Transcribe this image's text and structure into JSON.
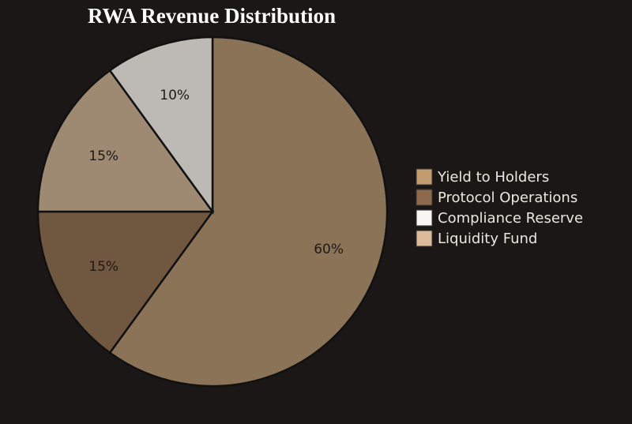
{
  "chart_data": {
    "type": "pie",
    "title": "RWA Revenue Distribution",
    "categories": [
      "Yield to Holders",
      "Protocol Operations",
      "Compliance Reserve",
      "Liquidity Fund"
    ],
    "values": [
      60,
      15,
      15,
      10
    ],
    "value_labels": [
      "60%",
      "15%",
      "15%",
      "10%"
    ],
    "colors": [
      "#8b7358",
      "#6f5740",
      "#9e8a72",
      "#bdbab5"
    ],
    "legend_colors": [
      "#c49c72",
      "#8c6a4b",
      "#f8f6f2",
      "#dbbb98"
    ],
    "legend": "right"
  }
}
